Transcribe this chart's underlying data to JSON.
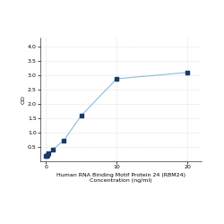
{
  "x": [
    0.0,
    0.064,
    0.16,
    0.4,
    1.0,
    2.5,
    5.0,
    10.0,
    20.0
  ],
  "y": [
    0.175,
    0.19,
    0.22,
    0.28,
    0.42,
    0.72,
    1.6,
    2.88,
    3.1
  ],
  "line_color": "#88bbdd",
  "marker_color": "#1a3a6b",
  "marker_size": 3.5,
  "xlabel_line1": "Human RNA Binding Motif Protein 24 (RBM24)",
  "xlabel_line2": "Concentration (ng/ml)",
  "ylabel": "OD",
  "xlim": [
    -0.8,
    22
  ],
  "ylim": [
    0,
    4.3
  ],
  "yticks": [
    0.5,
    1.0,
    1.5,
    2.0,
    2.5,
    3.0,
    3.5,
    4.0
  ],
  "xticks": [
    0,
    10,
    20
  ],
  "grid_color": "#dddddd",
  "background_color": "#ffffff",
  "line_width": 0.8,
  "font_size_label": 4.5,
  "font_size_tick": 4.5
}
